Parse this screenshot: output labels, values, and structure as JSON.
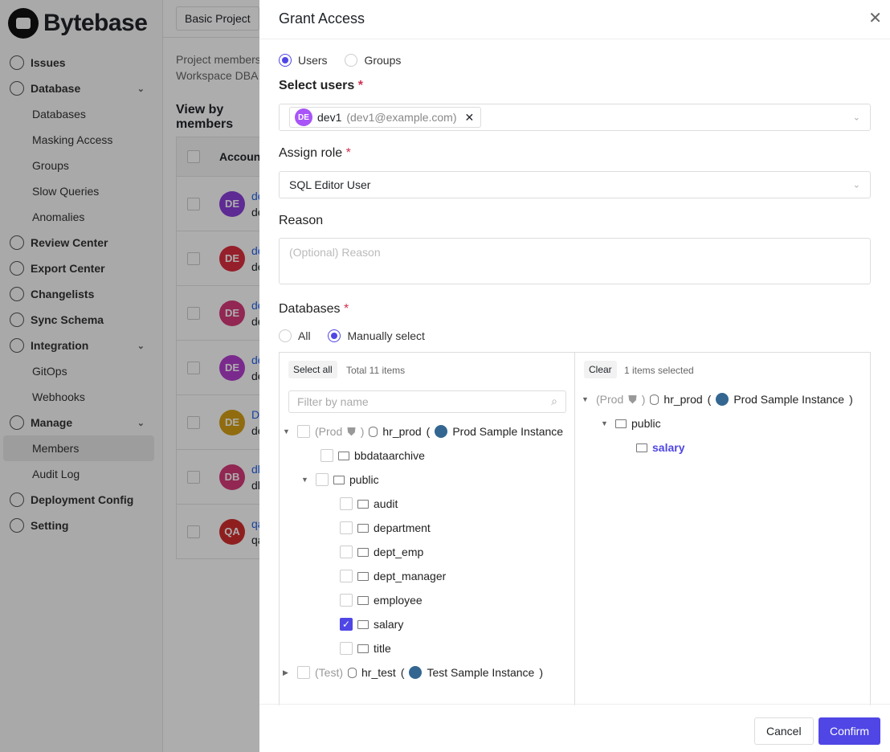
{
  "brand": "Bytebase",
  "sidebar": {
    "items": [
      {
        "label": "Issues",
        "type": "item"
      },
      {
        "label": "Database",
        "type": "item",
        "expand": true
      },
      {
        "label": "Databases",
        "type": "sub"
      },
      {
        "label": "Masking Access",
        "type": "sub"
      },
      {
        "label": "Groups",
        "type": "sub"
      },
      {
        "label": "Slow Queries",
        "type": "sub"
      },
      {
        "label": "Anomalies",
        "type": "sub"
      },
      {
        "label": "Review Center",
        "type": "item"
      },
      {
        "label": "Export Center",
        "type": "item"
      },
      {
        "label": "Changelists",
        "type": "item"
      },
      {
        "label": "Sync Schema",
        "type": "item"
      },
      {
        "label": "Integration",
        "type": "item",
        "expand": true
      },
      {
        "label": "GitOps",
        "type": "sub"
      },
      {
        "label": "Webhooks",
        "type": "sub"
      },
      {
        "label": "Manage",
        "type": "item",
        "expand": true
      },
      {
        "label": "Members",
        "type": "sub",
        "active": true
      },
      {
        "label": "Audit Log",
        "type": "sub"
      },
      {
        "label": "Deployment Config",
        "type": "item"
      },
      {
        "label": "Setting",
        "type": "item"
      }
    ]
  },
  "main": {
    "project": "Basic Project",
    "desc1": "Project members",
    "desc2": "Workspace DBA",
    "tab": "View by members",
    "col": "Account",
    "rows": [
      {
        "initials": "DE",
        "color": "#8b3fd9",
        "name": "de",
        "email": "de"
      },
      {
        "initials": "DE",
        "color": "#dc2f3e",
        "name": "de",
        "email": "de"
      },
      {
        "initials": "DE",
        "color": "#d63a7a",
        "name": "de",
        "email": "de"
      },
      {
        "initials": "DE",
        "color": "#b43fd0",
        "name": "de",
        "email": "de"
      },
      {
        "initials": "DE",
        "color": "#d4a017",
        "name": "D",
        "email": "de"
      },
      {
        "initials": "DB",
        "color": "#d63a7a",
        "name": "dl",
        "email": "dl"
      },
      {
        "initials": "QA",
        "color": "#d32f2f",
        "name": "qa",
        "email": "qa"
      }
    ]
  },
  "drawer": {
    "title": "Grant Access",
    "type_options": [
      "Users",
      "Groups"
    ],
    "type_selected": "Users",
    "select_users_label": "Select users",
    "user_tag": {
      "initials": "DE",
      "name": "dev1",
      "email": "(dev1@example.com)"
    },
    "role_label": "Assign role",
    "role_value": "SQL Editor User",
    "reason_label": "Reason",
    "reason_placeholder": "(Optional) Reason",
    "databases_label": "Databases",
    "db_options": [
      "All",
      "Manually select"
    ],
    "db_selected": "Manually select",
    "left": {
      "select_all": "Select all",
      "total": "Total 11 items",
      "filter_placeholder": "Filter by name",
      "prod": {
        "env": "(Prod",
        "close": ")",
        "db": "hr_prod",
        "instance": "Prod Sample Instance"
      },
      "schemas": [
        "bbdataarchive",
        "public"
      ],
      "tables": [
        {
          "name": "audit",
          "checked": false
        },
        {
          "name": "department",
          "checked": false
        },
        {
          "name": "dept_emp",
          "checked": false
        },
        {
          "name": "dept_manager",
          "checked": false
        },
        {
          "name": "employee",
          "checked": false
        },
        {
          "name": "salary",
          "checked": true
        },
        {
          "name": "title",
          "checked": false
        }
      ],
      "test": {
        "env": "(Test)",
        "db": "hr_test",
        "instance": "Test Sample Instance"
      }
    },
    "right": {
      "clear": "Clear",
      "selected": "1 items selected",
      "env": "(Prod",
      "close": ")",
      "db": "hr_prod",
      "instance": "Prod Sample Instance",
      "schema": "public",
      "table": "salary"
    },
    "cancel": "Cancel",
    "confirm": "Confirm",
    "accent": "#4f46e5"
  }
}
